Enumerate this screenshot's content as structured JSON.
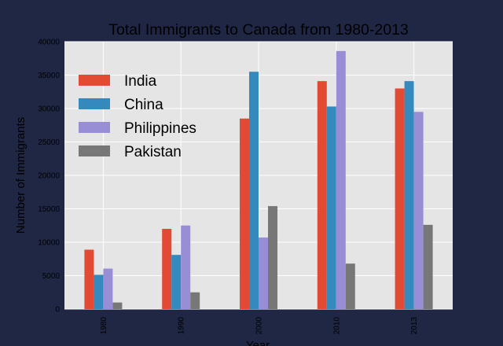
{
  "chart_data": {
    "type": "bar",
    "title": "Total Immigrants to Canada from 1980-2013",
    "xlabel": "Year",
    "ylabel": "Number of Immigrants",
    "categories": [
      "1980",
      "1990",
      "2000",
      "2010",
      "2013"
    ],
    "series": [
      {
        "name": "India",
        "color": "#e24a33",
        "values": [
          8880,
          12000,
          28500,
          34100,
          33000
        ]
      },
      {
        "name": "China",
        "color": "#348abd",
        "values": [
          5120,
          8100,
          35500,
          30300,
          34100
        ]
      },
      {
        "name": "Philippines",
        "color": "#988ed5",
        "values": [
          6050,
          12500,
          10700,
          38600,
          29500
        ]
      },
      {
        "name": "Pakistan",
        "color": "#777777",
        "values": [
          980,
          2500,
          15400,
          6800,
          12600
        ]
      }
    ],
    "ylim": [
      0,
      40000
    ],
    "yticks": [
      0,
      5000,
      10000,
      15000,
      20000,
      25000,
      30000,
      35000,
      40000
    ],
    "grid": true,
    "legend_position": "top-left",
    "colors": {
      "figure_background": "#1f2744",
      "plot_background": "#e5e5e5",
      "grid": "#ffffff"
    }
  }
}
